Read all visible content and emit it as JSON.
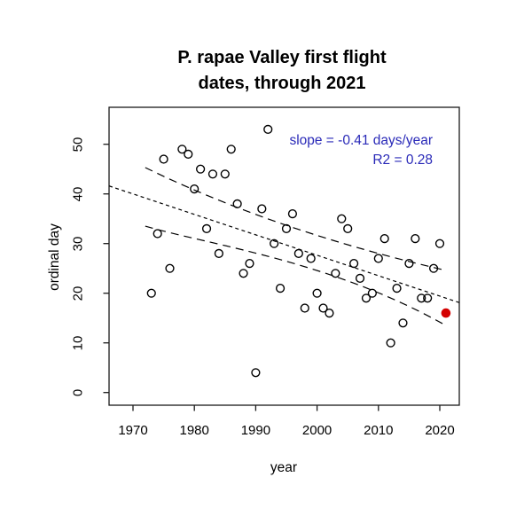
{
  "title": {
    "line1": "P. rapae Valley first flight",
    "line2": "dates, through 2021"
  },
  "annotation": {
    "line1": "slope = -0.41 days/year",
    "line2": "R2 = 0.28",
    "color": "#2a2ab8"
  },
  "axes": {
    "xlabel": "year",
    "ylabel": "ordinal day"
  },
  "colors": {
    "open_point": "#000000",
    "highlight_point": "#d40000",
    "line": "#000000",
    "box": "#1a1a1a"
  },
  "chart_data": {
    "type": "scatter",
    "title": "P. rapae Valley first flight dates, through 2021",
    "xlabel": "year",
    "ylabel": "ordinal day",
    "xlim": [
      1966,
      2023.2
    ],
    "ylim": [
      -2.5,
      57.5
    ],
    "x_ticks": [
      1970,
      1980,
      1990,
      2000,
      2010,
      2020
    ],
    "y_ticks": [
      0,
      10,
      20,
      30,
      40,
      50
    ],
    "grid": false,
    "legend_position": "none",
    "annotations": [
      "slope = -0.41 days/year",
      "R2 = 0.28"
    ],
    "points": [
      [
        1973,
        20
      ],
      [
        1974,
        32
      ],
      [
        1975,
        47
      ],
      [
        1976,
        25
      ],
      [
        1978,
        49
      ],
      [
        1979,
        48
      ],
      [
        1980,
        41
      ],
      [
        1981,
        45
      ],
      [
        1982,
        33
      ],
      [
        1983,
        44
      ],
      [
        1984,
        28
      ],
      [
        1985,
        44
      ],
      [
        1986,
        49
      ],
      [
        1987,
        38
      ],
      [
        1988,
        24
      ],
      [
        1989,
        26
      ],
      [
        1990,
        4
      ],
      [
        1991,
        37
      ],
      [
        1992,
        53
      ],
      [
        1993,
        30
      ],
      [
        1994,
        21
      ],
      [
        1995,
        33
      ],
      [
        1996,
        36
      ],
      [
        1997,
        28
      ],
      [
        1998,
        17
      ],
      [
        1999,
        27
      ],
      [
        2000,
        20
      ],
      [
        2001,
        17
      ],
      [
        2002,
        16
      ],
      [
        2003,
        24
      ],
      [
        2004,
        35
      ],
      [
        2005,
        33
      ],
      [
        2006,
        26
      ],
      [
        2007,
        23
      ],
      [
        2008,
        19
      ],
      [
        2009,
        20
      ],
      [
        2010,
        27
      ],
      [
        2011,
        31
      ],
      [
        2012,
        10
      ],
      [
        2013,
        21
      ],
      [
        2014,
        14
      ],
      [
        2015,
        26
      ],
      [
        2016,
        31
      ],
      [
        2017,
        19
      ],
      [
        2018,
        19
      ],
      [
        2019,
        25
      ],
      [
        2020,
        30
      ]
    ],
    "highlight_point": {
      "year": 2021,
      "day": 16,
      "color": "#d40000"
    },
    "regression_line": {
      "slope_days_per_year": -0.41,
      "r2": 0.28,
      "x": [
        1966.1,
        2023.2
      ],
      "y": [
        41.6,
        18.1
      ],
      "dash": "short"
    },
    "confidence_band": {
      "dash": "long",
      "upper": {
        "p0": [
          1972.0,
          45.3
        ],
        "c1": [
          1984.5,
          37.8
        ],
        "c2": [
          2000.3,
          30.5
        ],
        "p3": [
          2021.0,
          24.6
        ]
      },
      "lower": {
        "p0": [
          1972.0,
          33.5
        ],
        "c1": [
          1983.0,
          29.6
        ],
        "c2": [
          2002.5,
          26.4
        ],
        "p3": [
          2021.0,
          13.5
        ]
      }
    }
  }
}
